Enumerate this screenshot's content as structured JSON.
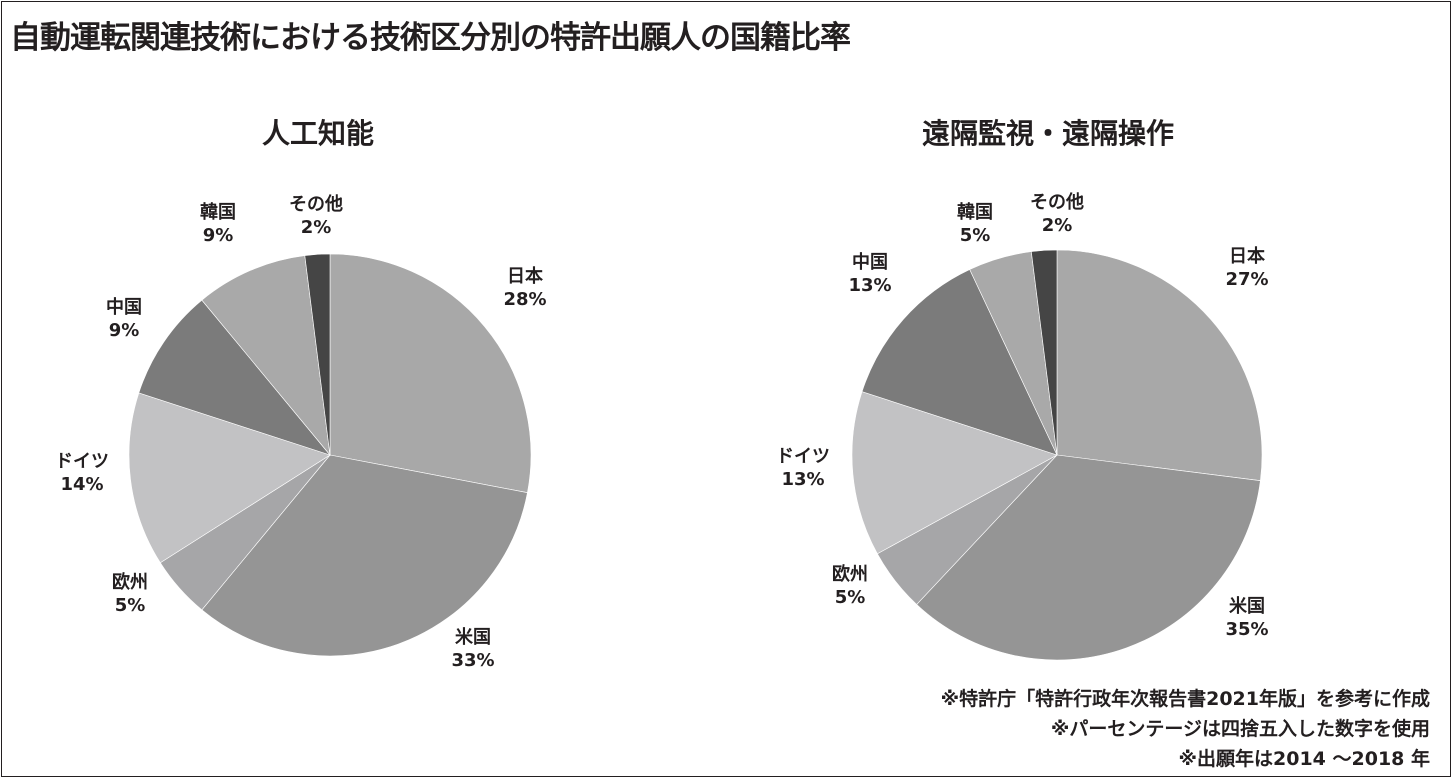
{
  "title": "自動運転関連技術における技術区分別の特許出願人の国籍比率",
  "chart_data": [
    {
      "type": "pie",
      "title": "人工知能",
      "unit": "%",
      "categories": [
        "日本",
        "米国",
        "欧州",
        "ドイツ",
        "中国",
        "韓国",
        "その他"
      ],
      "values": [
        28,
        33,
        5,
        14,
        9,
        9,
        2
      ],
      "colors": [
        "#a8a8a8",
        "#959595",
        "#a6a6a8",
        "#c2c2c4",
        "#7b7b7b",
        "#a9a9a9",
        "#454545"
      ],
      "start": "12 o'clock, clockwise"
    },
    {
      "type": "pie",
      "title": "遠隔監視・遠隔操作",
      "unit": "%",
      "categories": [
        "日本",
        "米国",
        "欧州",
        "ドイツ",
        "中国",
        "韓国",
        "その他"
      ],
      "values": [
        27,
        35,
        5,
        13,
        13,
        5,
        2
      ],
      "colors": [
        "#a8a8a8",
        "#959595",
        "#a6a6a8",
        "#c2c2c4",
        "#7b7b7b",
        "#a9a9a9",
        "#454545"
      ],
      "start": "12 o'clock, clockwise"
    }
  ],
  "notes": [
    "※特許庁「特許行政年次報告書2021年版」を参考に作成",
    "※パーセンテージは四捨五入した数字を使用",
    "※出願年は2014 ～2018 年"
  ]
}
